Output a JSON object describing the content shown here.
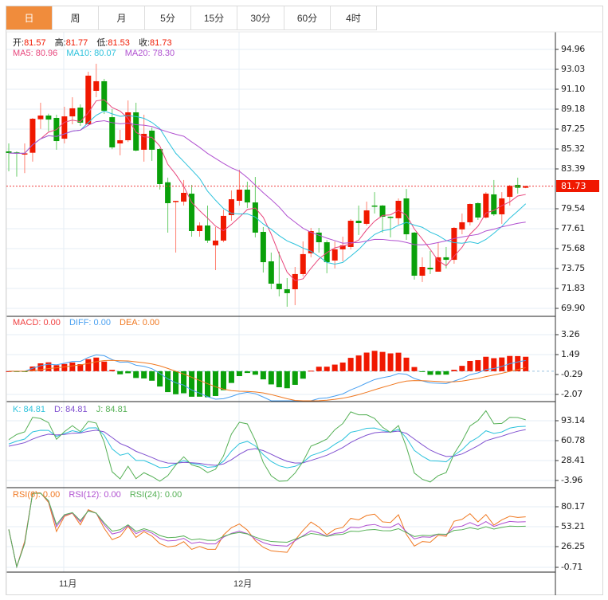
{
  "tabs": [
    {
      "label": "日",
      "active": true
    },
    {
      "label": "周"
    },
    {
      "label": "月"
    },
    {
      "label": "5分"
    },
    {
      "label": "15分"
    },
    {
      "label": "30分"
    },
    {
      "label": "60分"
    },
    {
      "label": "4时"
    }
  ],
  "ohlc_header": {
    "open_label": "开:",
    "open": "81.57",
    "high_label": "高:",
    "high": "81.77",
    "low_label": "低:",
    "low": "81.53",
    "close_label": "收:",
    "close": "81.73"
  },
  "ma_header": {
    "ma5": "MA5: 80.96",
    "ma10": "MA10: 80.07",
    "ma20": "MA20: 78.30"
  },
  "macd_header": {
    "macd": "MACD: 0.00",
    "diff": "DIFF: 0.00",
    "dea": "DEA: 0.00"
  },
  "kdj_header": {
    "k": "K: 84.81",
    "d": "D: 84.81",
    "j": "J: 84.81"
  },
  "rsi_header": {
    "rsi6": "RSI(6): 0.00",
    "rsi12": "RSI(12): 0.00",
    "rsi24": "RSI(24): 0.00"
  },
  "current_price": "81.73",
  "colors": {
    "up": "#f01800",
    "down": "#0aa00a",
    "accent": "#f08c3c",
    "ma5": "#e8467c",
    "ma10": "#2bc2dc",
    "ma20": "#b050d0",
    "diff": "#4aa0f0",
    "dea": "#f07820",
    "k": "#2bc2dc",
    "d": "#8050d0",
    "j": "#55b055",
    "rsi6": "#f07820",
    "rsi12": "#b050d0",
    "rsi24": "#55b055"
  },
  "chart_data": {
    "type": "candlestick",
    "x_labels": [
      "11月",
      "12月"
    ],
    "price_axis": {
      "ticks": [
        "94.96",
        "93.03",
        "91.10",
        "89.18",
        "87.25",
        "85.32",
        "83.39",
        "79.54",
        "77.61",
        "75.68",
        "73.75",
        "71.83",
        "69.90"
      ],
      "ylim": [
        69.9,
        94.96
      ]
    },
    "macd_axis": {
      "ticks": [
        "3.26",
        "1.49",
        "-0.29",
        "-2.07"
      ],
      "ylim": [
        -2.07,
        3.26
      ]
    },
    "kdj_axis": {
      "ticks": [
        "93.14",
        "60.78",
        "28.41",
        "-3.96"
      ],
      "ylim": [
        -3.96,
        93.14
      ]
    },
    "rsi_axis": {
      "ticks": [
        "80.17",
        "53.21",
        "26.25",
        "-0.71"
      ],
      "ylim": [
        -0.71,
        80.17
      ]
    },
    "candles": [
      [
        85.09,
        84.94,
        85.86,
        83.16
      ],
      [
        85.0,
        84.87,
        85.09,
        82.65
      ],
      [
        84.8,
        84.9,
        85.86,
        82.99
      ],
      [
        84.96,
        88.25,
        88.33,
        84.1
      ],
      [
        88.2,
        88.56,
        89.8,
        87.27
      ],
      [
        88.56,
        88.17,
        88.74,
        87.02
      ],
      [
        88.33,
        86.09,
        88.64,
        85.25
      ],
      [
        86.32,
        88.48,
        89.41,
        85.86
      ],
      [
        88.48,
        89.26,
        90.33,
        87.71
      ],
      [
        89.33,
        87.87,
        89.64,
        87.56
      ],
      [
        87.71,
        92.42,
        92.8,
        87.71
      ],
      [
        90.95,
        91.88,
        93.57,
        90.33
      ],
      [
        91.88,
        89.02,
        92.11,
        88.71
      ],
      [
        88.4,
        85.48,
        89.18,
        85.3
      ],
      [
        85.86,
        86.17,
        87.18,
        84.71
      ],
      [
        86.17,
        88.87,
        90.02,
        86.0
      ],
      [
        88.87,
        85.17,
        89.8,
        85.1
      ],
      [
        85.25,
        86.79,
        88.64,
        84.1
      ],
      [
        87.1,
        85.25,
        87.4,
        84.17
      ],
      [
        85.32,
        81.93,
        85.4,
        81.4
      ],
      [
        82.1,
        80.08,
        82.55,
        77.23
      ],
      [
        80.2,
        80.3,
        80.3,
        75.3
      ],
      [
        80.23,
        81.08,
        82.32,
        79.85
      ],
      [
        81.0,
        77.38,
        81.85,
        76.84
      ],
      [
        77.38,
        77.92,
        78.23,
        76.84
      ],
      [
        77.92,
        76.46,
        79.85,
        76.23
      ],
      [
        76.0,
        76.46,
        77.77,
        73.6
      ],
      [
        76.46,
        78.85,
        79.46,
        76.3
      ],
      [
        78.92,
        80.46,
        81.31,
        78.38
      ],
      [
        80.31,
        81.39,
        83.32,
        79.85
      ],
      [
        81.39,
        80.15,
        82.16,
        79.62
      ],
      [
        80.15,
        77.23,
        82.62,
        76.77
      ],
      [
        77.3,
        74.37,
        77.77,
        73.37
      ],
      [
        74.45,
        72.29,
        75.3,
        71.75
      ],
      [
        72.29,
        71.75,
        75.38,
        71.06
      ],
      [
        71.75,
        71.37,
        72.83,
        70.06
      ],
      [
        71.75,
        73.22,
        73.91,
        70.21
      ],
      [
        73.22,
        75.15,
        76.38,
        73.0
      ],
      [
        75.22,
        77.38,
        77.69,
        74.84
      ],
      [
        77.23,
        76.3,
        77.69,
        75.3
      ],
      [
        76.3,
        74.37,
        76.5,
        73.3
      ],
      [
        74.53,
        75.61,
        76.38,
        73.76
      ],
      [
        75.61,
        76.0,
        76.84,
        74.45
      ],
      [
        75.84,
        78.38,
        78.54,
        75.6
      ],
      [
        78.38,
        78.15,
        79.85,
        77.0
      ],
      [
        78.08,
        79.38,
        80.23,
        77.92
      ],
      [
        79.85,
        79.77,
        81.15,
        79.08
      ],
      [
        79.85,
        78.77,
        79.9,
        77.23
      ],
      [
        78.77,
        78.69,
        78.8,
        76.77
      ],
      [
        78.62,
        80.31,
        80.54,
        78.0
      ],
      [
        80.54,
        77.07,
        81.46,
        76.53
      ],
      [
        77.23,
        73.06,
        77.3,
        72.68
      ],
      [
        73.06,
        73.91,
        74.84,
        72.45
      ],
      [
        73.83,
        73.68,
        75.46,
        73.22
      ],
      [
        73.45,
        74.84,
        76.3,
        73.45
      ],
      [
        74.84,
        74.6,
        75.84,
        73.76
      ],
      [
        74.6,
        77.69,
        77.77,
        74.22
      ],
      [
        77.54,
        78.23,
        79.08,
        77.07
      ],
      [
        78.23,
        80.0,
        80.05,
        77.92
      ],
      [
        80.08,
        78.69,
        80.15,
        78.46
      ],
      [
        78.69,
        81.0,
        81.15,
        78.6
      ],
      [
        80.93,
        79.0,
        82.32,
        78.85
      ],
      [
        79.0,
        80.54,
        81.15,
        78.08
      ],
      [
        80.69,
        81.77,
        81.85,
        79.85
      ],
      [
        81.85,
        81.57,
        82.55,
        81.0
      ],
      [
        81.57,
        81.73,
        81.77,
        81.53
      ]
    ]
  }
}
